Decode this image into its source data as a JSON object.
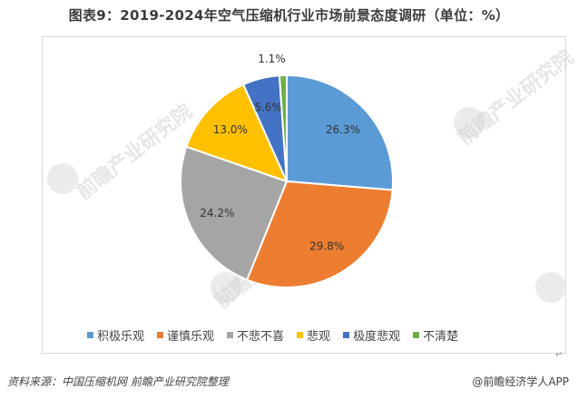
{
  "title": "图表9：2019-2024年空气压缩机行业市场前景态度调研（单位：%）",
  "watermark_text": "前瞻产业研究院",
  "source": "资料来源：中国压缩机网  前瞻产业研究院整理",
  "brand": "@前瞻经济学人APP",
  "chart_data": {
    "type": "pie",
    "categories": [
      "积极乐观",
      "谨慎乐观",
      "不悲不喜",
      "悲观",
      "极度悲观",
      "不清楚"
    ],
    "values": [
      26.3,
      29.8,
      24.2,
      13.0,
      5.6,
      1.1
    ],
    "labels": [
      "26.3%",
      "29.8%",
      "24.2%",
      "13.0%",
      "5.6%",
      "1.1%"
    ],
    "colors": [
      "#5B9BD5",
      "#ED7D31",
      "#A5A5A5",
      "#FFC000",
      "#4472C4",
      "#70AD47"
    ],
    "start": "12 o'clock",
    "direction": "clockwise",
    "legend_position": "bottom"
  }
}
